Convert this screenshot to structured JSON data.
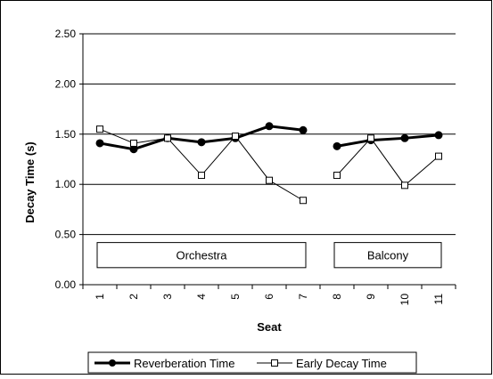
{
  "chart_data": {
    "type": "line",
    "title": "",
    "xlabel": "Seat",
    "ylabel": "Decay Time (s)",
    "ylim": [
      0,
      2.5
    ],
    "y_ticks": [
      "0.00",
      "0.50",
      "1.00",
      "1.50",
      "2.00",
      "2.50"
    ],
    "categories": [
      "1",
      "2",
      "3",
      "4",
      "5",
      "6",
      "7",
      "8",
      "9",
      "10",
      "11"
    ],
    "grid": "horizontal",
    "legend_position": "bottom",
    "regions": [
      {
        "label": "Orchestra",
        "from": "1",
        "to": "7"
      },
      {
        "label": "Balcony",
        "from": "8",
        "to": "11"
      }
    ],
    "series": [
      {
        "name": "Reverberation Time",
        "marker": "filled-circle",
        "color": "#000000",
        "segments": [
          [
            1.41,
            1.35,
            1.46,
            1.42,
            1.46,
            1.58,
            1.54
          ],
          [
            1.38,
            1.44,
            1.46,
            1.49
          ]
        ]
      },
      {
        "name": "Early Decay Time",
        "marker": "open-square",
        "color": "#000000",
        "segments": [
          [
            1.55,
            1.41,
            1.46,
            1.09,
            1.48,
            1.04,
            0.84
          ],
          [
            1.09,
            1.46,
            0.99,
            1.28
          ]
        ]
      }
    ]
  }
}
